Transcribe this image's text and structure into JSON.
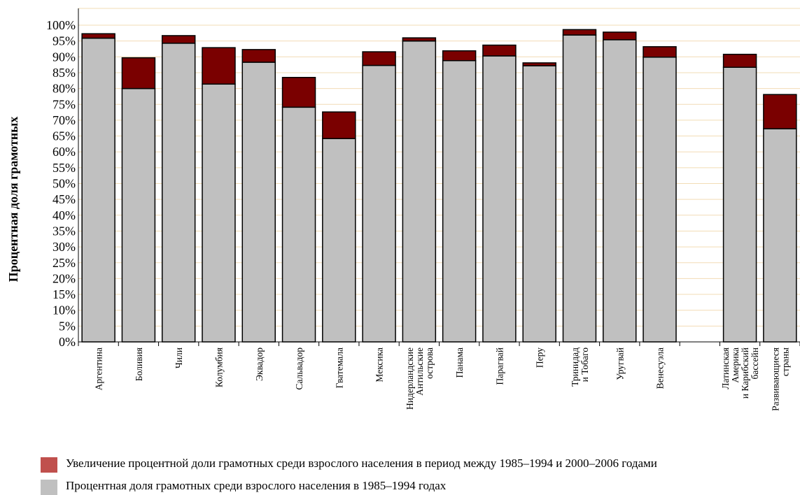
{
  "chart_data": {
    "type": "bar",
    "stacked": true,
    "title": "",
    "xlabel": "",
    "ylabel": "Процентная доля грамотных",
    "ylim": [
      0,
      100
    ],
    "yticks": [
      "0%",
      "5%",
      "10%",
      "15%",
      "20%",
      "25%",
      "30%",
      "35%",
      "40%",
      "45%",
      "50%",
      "55%",
      "60%",
      "65%",
      "70%",
      "75%",
      "80%",
      "85%",
      "90%",
      "95%",
      "100%"
    ],
    "grid": true,
    "categories": [
      [
        "Аргентина"
      ],
      [
        "Боливия"
      ],
      [
        "Чили"
      ],
      [
        "Колумбия"
      ],
      [
        "Эквадор"
      ],
      [
        "Сальвадор"
      ],
      [
        "Гватемала"
      ],
      [
        "Мексика"
      ],
      [
        "Нидерландские",
        "Антильские",
        "острова"
      ],
      [
        "Панама"
      ],
      [
        "Парагвай"
      ],
      [
        "Перу"
      ],
      [
        "Тринидад",
        "и Тобаго"
      ],
      [
        "Уругвай"
      ],
      [
        "Венесуэла"
      ],
      [],
      [
        "Латинская",
        "Америка",
        "и Карибский",
        "бассейн"
      ],
      [
        "Развивающиеся",
        "страны"
      ]
    ],
    "series": [
      {
        "name": "Процентная доля грамотных среди взрослого населения в 1985–1994 годах",
        "color": "#c0c0c0",
        "values": [
          95.9,
          80.0,
          94.3,
          81.4,
          88.3,
          74.1,
          64.2,
          87.3,
          95.0,
          88.8,
          90.3,
          87.2,
          96.9,
          95.4,
          89.9,
          null,
          86.7,
          67.3
        ]
      },
      {
        "name": "Увеличение процентной доли грамотных среди взрослого населения в период между 1985–1994 и 2000–2006 годами",
        "color": "#7a0000",
        "values": [
          1.4,
          9.7,
          2.4,
          11.5,
          4.0,
          9.4,
          8.4,
          4.3,
          1.0,
          3.1,
          3.4,
          0.9,
          1.7,
          2.4,
          3.3,
          null,
          4.1,
          10.8
        ]
      }
    ],
    "legend": {
      "position": "bottom",
      "items": [
        {
          "label": "Увеличение процентной доли грамотных среди взрослого населения в период между 1985–1994 и 2000–2006 годами",
          "color": "#c0504d"
        },
        {
          "label": "Процентная доля грамотных среди взрослого населения в 1985–1994 годах",
          "color": "#c0c0c0"
        }
      ]
    },
    "colors": {
      "grid": "#f2dcb5",
      "axis": "#000000",
      "bar_outline": "#000000"
    }
  }
}
